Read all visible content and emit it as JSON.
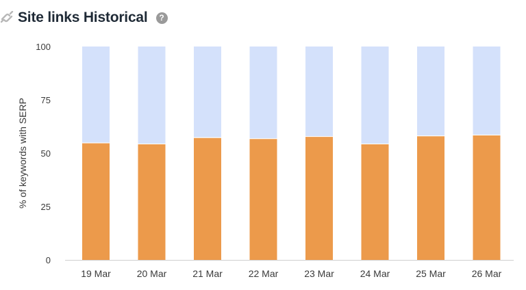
{
  "header": {
    "title": "Site links Historical",
    "help_icon_glyph": "?"
  },
  "chart_data": {
    "type": "bar",
    "stacked": true,
    "categories": [
      "19 Mar",
      "20 Mar",
      "21 Mar",
      "22 Mar",
      "23 Mar",
      "24 Mar",
      "25 Mar",
      "26 Mar"
    ],
    "series": [
      {
        "values": [
          55,
          54.5,
          57.5,
          57,
          58,
          54.5,
          58.3,
          58.7
        ],
        "color": "#ec9a4b"
      },
      {
        "values": [
          45,
          45.5,
          42.5,
          43,
          42,
          45.5,
          41.7,
          41.3
        ],
        "color": "#d4e1fb"
      }
    ],
    "ylabel": "% of keywords with SERP",
    "xlabel": "",
    "ylim": [
      0,
      100
    ],
    "yticks": [
      0,
      25,
      50,
      75,
      100
    ],
    "grid": false
  }
}
